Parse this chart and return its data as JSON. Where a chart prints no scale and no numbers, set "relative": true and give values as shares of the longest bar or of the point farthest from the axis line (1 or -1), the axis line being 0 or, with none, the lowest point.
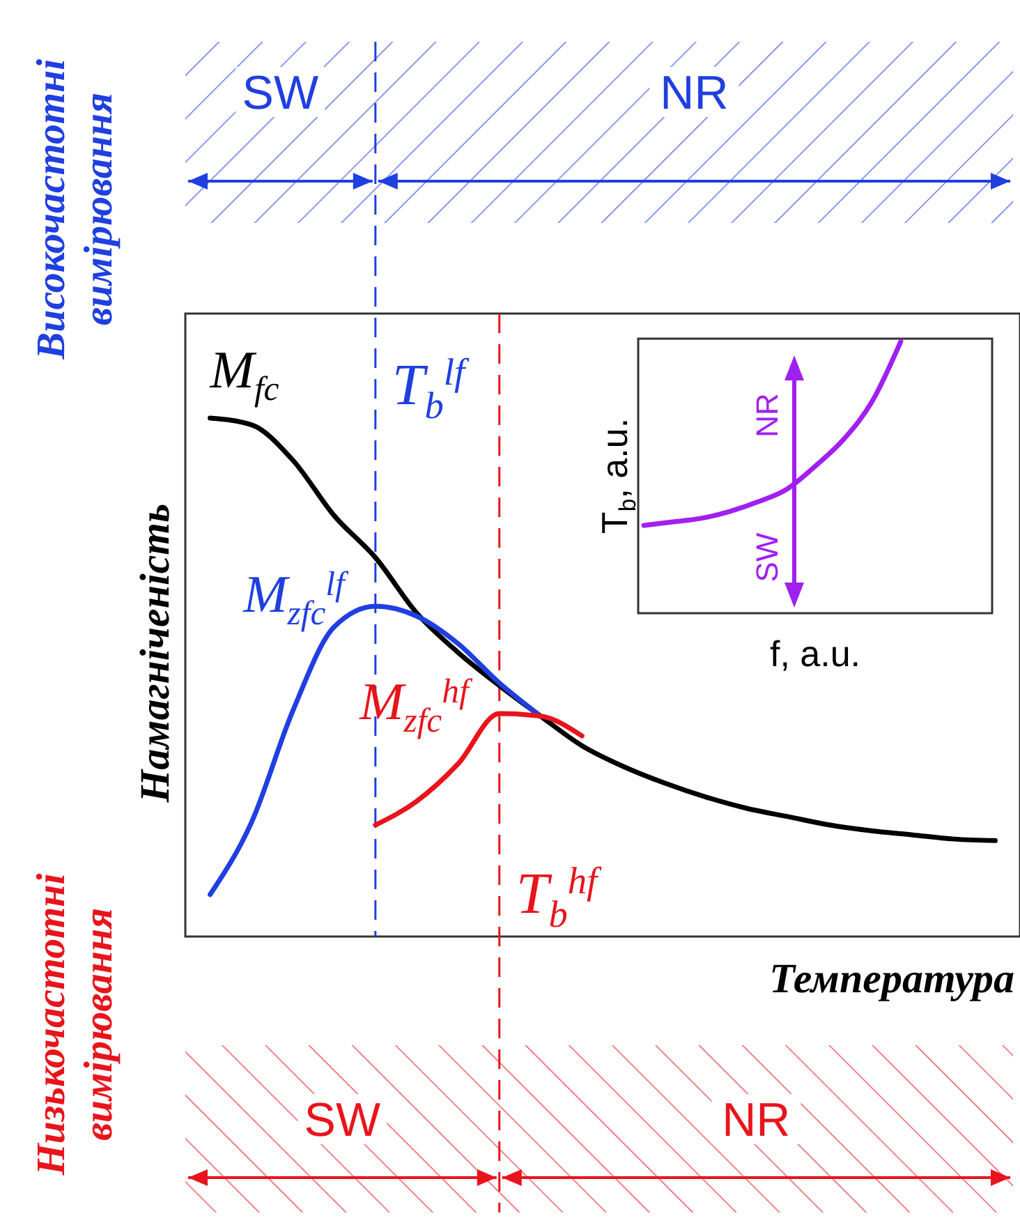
{
  "chart_data": [
    {
      "type": "line",
      "relative": true,
      "xlabel": "Температура",
      "ylabel": "Намагніченість",
      "categories": [
        null,
        null,
        null,
        null,
        null,
        null,
        null,
        null,
        null,
        null,
        null,
        null,
        null,
        null,
        null,
        null,
        null,
        null,
        null,
        null
      ],
      "series": [
        {
          "name": "M$_{fc}$",
          "color": "#000000",
          "values": [
            1.0,
            0.987,
            0.919,
            0.812,
            0.731,
            0.624,
            0.548,
            0.484,
            0.425,
            0.368,
            0.328,
            0.296,
            0.269,
            0.247,
            0.231,
            0.215,
            0.204,
            0.196,
            0.188,
            0.185
          ]
        },
        {
          "name": "M$_{zfc}$$^{lf}$",
          "color": "#1f3fe0",
          "values": [
            0.081,
            0.22,
            0.435,
            0.597,
            0.637,
            0.618,
            0.565,
            0.489,
            0.425,
            null,
            null,
            null,
            null,
            null,
            null,
            null,
            null,
            null,
            null,
            null
          ]
        },
        {
          "name": "M$_{zfc}$$^{hf}$",
          "color": "#e8141c",
          "values": [
            null,
            null,
            null,
            null,
            0.215,
            0.261,
            0.333,
            0.43,
            0.425,
            0.387,
            null,
            null,
            null,
            null,
            null,
            null,
            null,
            null,
            null,
            null
          ]
        }
      ],
      "annotations": [
        "T$_{b}$$^{lf}$",
        "T$_{b}$$^{hf}$",
        "SW",
        "NR",
        "SW",
        "NR",
        "Високочастотні вимірювання",
        "Низькочастотні вимірювання"
      ]
    },
    {
      "type": "line",
      "relative": true,
      "xlabel": "f, a.u.",
      "ylabel": "T$_{b}$, a.u.",
      "categories": [
        null,
        null,
        null,
        null,
        null,
        null,
        null,
        null,
        null,
        null,
        null,
        null,
        null
      ],
      "series": [
        {
          "color": "#a020f0",
          "values": [
            0.323,
            0.336,
            0.349,
            0.374,
            0.41,
            0.456,
            0.541,
            0.64,
            0.78,
            1.0,
            null,
            null,
            null
          ]
        }
      ],
      "annotations": [
        "NR",
        "SW"
      ]
    }
  ]
}
